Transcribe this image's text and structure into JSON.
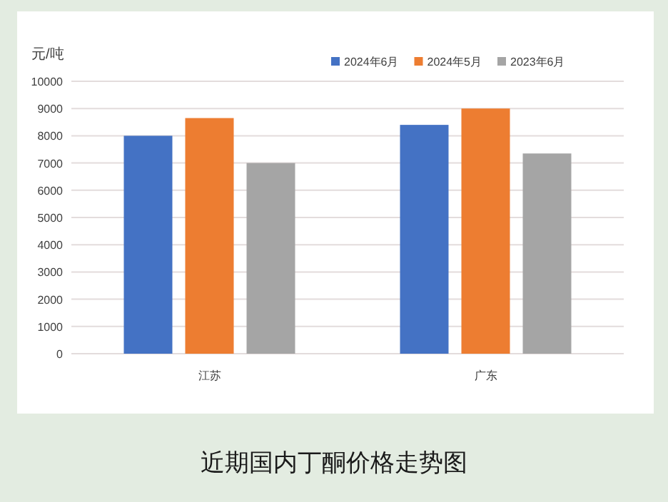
{
  "chart_data": {
    "type": "bar",
    "title": "近期国内丁酮价格走势图",
    "ylabel": "元/吨",
    "categories": [
      "江苏",
      "广东"
    ],
    "series": [
      {
        "name": "2024年6月",
        "color": "#4472c4",
        "values": [
          8000,
          8400
        ]
      },
      {
        "name": "2024年5月",
        "color": "#ed7d31",
        "values": [
          8650,
          9000
        ]
      },
      {
        "name": "2023年6月",
        "color": "#a5a5a5",
        "values": [
          7000,
          7350
        ]
      }
    ],
    "ylim": [
      0,
      10000
    ],
    "yticks": [
      0,
      1000,
      2000,
      3000,
      4000,
      5000,
      6000,
      7000,
      8000,
      9000,
      10000
    ],
    "grid": "y",
    "legend": "top right"
  }
}
